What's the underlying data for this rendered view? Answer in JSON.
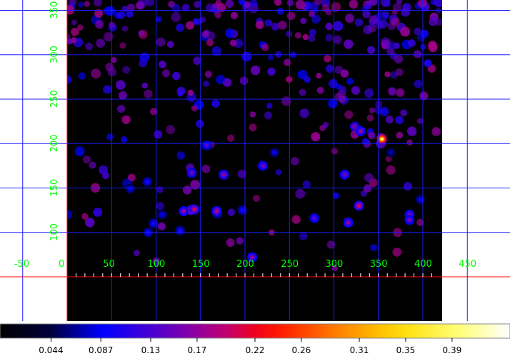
{
  "chart_data": {
    "type": "heatmap",
    "title": "",
    "xlabel": "",
    "ylabel": "",
    "xlim": [
      -50,
      450
    ],
    "ylim": [
      60,
      360
    ],
    "grid": true,
    "x_ticks": [
      {
        "value": -50,
        "label": "-50"
      },
      {
        "value": 0,
        "label": "0"
      },
      {
        "value": 50,
        "label": "50"
      },
      {
        "value": 100,
        "label": "100"
      },
      {
        "value": 150,
        "label": "150"
      },
      {
        "value": 200,
        "label": "200"
      },
      {
        "value": 250,
        "label": "250"
      },
      {
        "value": 300,
        "label": "300"
      },
      {
        "value": 350,
        "label": "350"
      },
      {
        "value": 400,
        "label": "400"
      },
      {
        "value": 450,
        "label": "450"
      }
    ],
    "y_ticks": [
      {
        "value": 100,
        "label": "100"
      },
      {
        "value": 150,
        "label": "150"
      },
      {
        "value": 200,
        "label": "200"
      },
      {
        "value": 250,
        "label": "250"
      },
      {
        "value": 300,
        "label": "300"
      },
      {
        "value": 350,
        "label": "350"
      }
    ],
    "image_extent": {
      "x": [
        0,
        420
      ],
      "y": [
        60,
        360
      ]
    },
    "colorbar": {
      "colormap": "sls",
      "range": [
        0.0,
        0.44
      ],
      "ticks": [
        0.044,
        0.087,
        0.13,
        0.17,
        0.22,
        0.26,
        0.31,
        0.35,
        0.39
      ],
      "tick_labels": [
        "0.044",
        "0.087",
        "0.13",
        "0.17",
        "0.22",
        "0.26",
        "0.31",
        "0.35",
        "0.39"
      ]
    },
    "peaks": [
      {
        "x": 354,
        "y": 205,
        "value": 0.44
      },
      {
        "x": 330,
        "y": 214,
        "value": 0.2
      },
      {
        "x": 312,
        "y": 165,
        "value": 0.18
      },
      {
        "x": 328,
        "y": 130,
        "value": 0.24
      },
      {
        "x": 316,
        "y": 111,
        "value": 0.2
      },
      {
        "x": 278,
        "y": 116,
        "value": 0.16
      },
      {
        "x": 385,
        "y": 120,
        "value": 0.18
      },
      {
        "x": 385,
        "y": 114,
        "value": 0.18
      },
      {
        "x": 220,
        "y": 175,
        "value": 0.18
      },
      {
        "x": 176,
        "y": 165,
        "value": 0.2
      },
      {
        "x": 139,
        "y": 125,
        "value": 0.26
      },
      {
        "x": 143,
        "y": 126,
        "value": 0.24
      },
      {
        "x": 168,
        "y": 124,
        "value": 0.22
      },
      {
        "x": 140,
        "y": 167,
        "value": 0.18
      },
      {
        "x": 157,
        "y": 198,
        "value": 0.16
      },
      {
        "x": 131,
        "y": 124,
        "value": 0.2
      },
      {
        "x": 208,
        "y": 72,
        "value": 0.2
      },
      {
        "x": 97,
        "y": 110,
        "value": 0.12
      },
      {
        "x": 91,
        "y": 100,
        "value": 0.12
      },
      {
        "x": 127,
        "y": 102,
        "value": 0.12
      },
      {
        "x": 71,
        "y": 149,
        "value": 0.1
      },
      {
        "x": 90,
        "y": 157,
        "value": 0.12
      },
      {
        "x": 233,
        "y": 190,
        "value": 0.1
      },
      {
        "x": 397,
        "y": 137,
        "value": 0.1
      },
      {
        "x": 197,
        "y": 125,
        "value": 0.12
      },
      {
        "x": 364,
        "y": 190,
        "value": 0.08
      },
      {
        "x": 107,
        "y": 120,
        "value": 0.1
      }
    ]
  }
}
